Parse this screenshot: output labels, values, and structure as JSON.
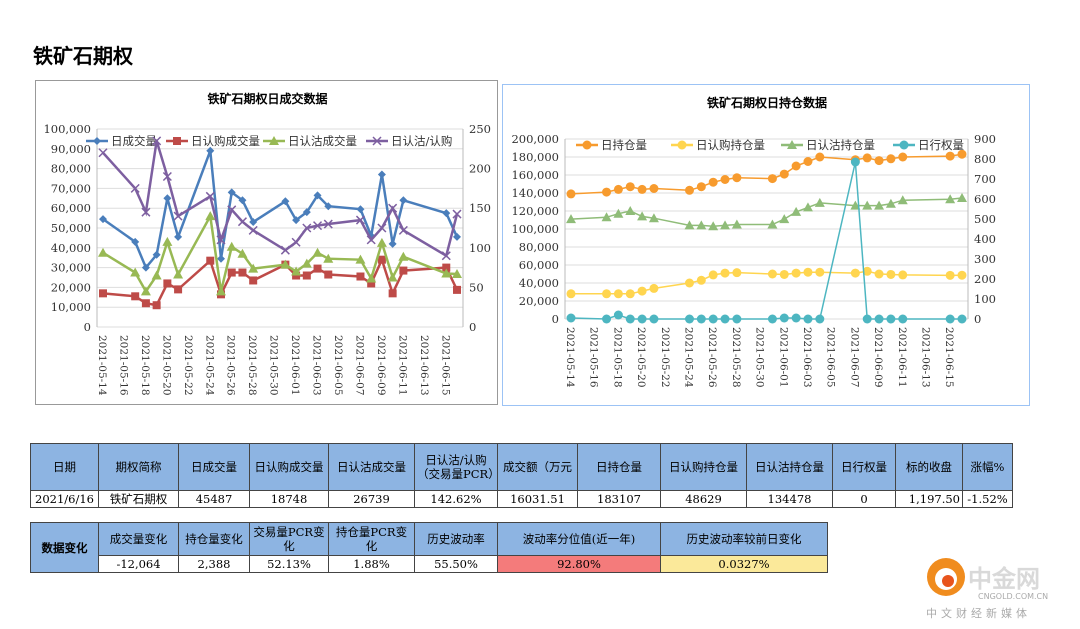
{
  "page_title": "铁矿石期权",
  "chart_data": [
    {
      "type": "line",
      "title": "铁矿石期权日成交数据",
      "x": [
        "2021-05-14",
        "2021-05-17",
        "2021-05-18",
        "2021-05-19",
        "2021-05-20",
        "2021-05-21",
        "2021-05-24",
        "2021-05-25",
        "2021-05-26",
        "2021-05-27",
        "2021-05-28",
        "2021-05-31",
        "2021-06-01",
        "2021-06-02",
        "2021-06-03",
        "2021-06-04",
        "2021-06-07",
        "2021-06-08",
        "2021-06-09",
        "2021-06-10",
        "2021-06-11",
        "2021-06-15",
        "2021-06-16"
      ],
      "x_tick_labels": [
        "2021-05-14",
        "2021-05-16",
        "2021-05-18",
        "2021-05-20",
        "2021-05-22",
        "2021-05-24",
        "2021-05-26",
        "2021-05-28",
        "2021-05-30",
        "2021-06-01",
        "2021-06-03",
        "2021-06-05",
        "2021-06-07",
        "2021-06-09",
        "2021-06-11",
        "2021-06-13",
        "2021-06-15"
      ],
      "y_ticks": [
        "0",
        "10,000",
        "20,000",
        "30,000",
        "40,000",
        "50,000",
        "60,000",
        "70,000",
        "80,000",
        "90,000",
        "100,000"
      ],
      "y2_ticks": [
        "0",
        "50",
        "100",
        "150",
        "200",
        "250"
      ],
      "ylim": [
        0,
        100000
      ],
      "y2lim": [
        0,
        250
      ],
      "grid": true,
      "legend": "top",
      "series": [
        {
          "name": "日成交量",
          "color": "#4a7ebb",
          "marker": "diamond",
          "axis": "left",
          "values": [
            54500,
            43000,
            30000,
            36500,
            65000,
            45500,
            89000,
            34500,
            68000,
            64000,
            53000,
            63500,
            54000,
            58000,
            66500,
            61000,
            59500,
            46000,
            77000,
            42000,
            64000,
            57500,
            45487
          ]
        },
        {
          "name": "日认购成交量",
          "color": "#be4b48",
          "marker": "square",
          "axis": "left",
          "values": [
            17000,
            15500,
            12000,
            11000,
            22000,
            19000,
            33500,
            16500,
            27500,
            27500,
            23500,
            31500,
            26000,
            26000,
            29500,
            26500,
            25500,
            22000,
            34000,
            17000,
            28500,
            30000,
            18748
          ]
        },
        {
          "name": "日认沽成交量",
          "color": "#98b954",
          "marker": "triangle",
          "axis": "left",
          "values": [
            37500,
            27500,
            18000,
            26000,
            43000,
            26500,
            56000,
            18000,
            40500,
            37000,
            29500,
            31500,
            28000,
            32000,
            37500,
            34500,
            34000,
            24500,
            42500,
            25000,
            35500,
            27000,
            26739
          ]
        },
        {
          "name": "日认沽/认购",
          "color": "#7d5fa0",
          "marker": "x",
          "axis": "right",
          "values": [
            220,
            175,
            145,
            235,
            190,
            140,
            165,
            110,
            148,
            133,
            122,
            97,
            107,
            125,
            128,
            130,
            135,
            110,
            125,
            150,
            122,
            90,
            142.62
          ]
        }
      ]
    },
    {
      "type": "line",
      "title": "铁矿石期权日持仓数据",
      "x": [
        "2021-05-14",
        "2021-05-17",
        "2021-05-18",
        "2021-05-19",
        "2021-05-20",
        "2021-05-21",
        "2021-05-24",
        "2021-05-25",
        "2021-05-26",
        "2021-05-27",
        "2021-05-28",
        "2021-05-31",
        "2021-06-01",
        "2021-06-02",
        "2021-06-03",
        "2021-06-04",
        "2021-06-07",
        "2021-06-08",
        "2021-06-09",
        "2021-06-10",
        "2021-06-11",
        "2021-06-15",
        "2021-06-16"
      ],
      "x_tick_labels": [
        "2021-05-14",
        "2021-05-16",
        "2021-05-18",
        "2021-05-20",
        "2021-05-22",
        "2021-05-24",
        "2021-05-26",
        "2021-05-28",
        "2021-05-30",
        "2021-06-01",
        "2021-06-03",
        "2021-06-05",
        "2021-06-07",
        "2021-06-09",
        "2021-06-11",
        "2021-06-13",
        "2021-06-15"
      ],
      "y_ticks": [
        "0",
        "20,000",
        "40,000",
        "60,000",
        "80,000",
        "100,000",
        "120,000",
        "140,000",
        "160,000",
        "180,000",
        "200,000"
      ],
      "y2_ticks": [
        "0",
        "100",
        "200",
        "300",
        "400",
        "500",
        "600",
        "700",
        "800",
        "900"
      ],
      "ylim": [
        0,
        200000
      ],
      "y2lim": [
        0,
        900
      ],
      "grid": true,
      "legend": "top",
      "series": [
        {
          "name": "日持仓量",
          "color": "#f79b2e",
          "marker": "circle",
          "axis": "left",
          "values": [
            139000,
            141000,
            144000,
            147000,
            144000,
            145000,
            143000,
            147000,
            152000,
            155000,
            157000,
            156000,
            161000,
            170000,
            175000,
            180000,
            177000,
            179000,
            176000,
            178000,
            180000,
            181000,
            183107
          ]
        },
        {
          "name": "日认购持仓量",
          "color": "#ffd54f",
          "marker": "circle",
          "axis": "left",
          "values": [
            28000,
            28000,
            28000,
            28000,
            31000,
            34000,
            40000,
            43000,
            49000,
            51000,
            51500,
            50000,
            49500,
            51000,
            52000,
            52000,
            51000,
            53000,
            50000,
            49500,
            49000,
            48500,
            48629
          ]
        },
        {
          "name": "日认沽持仓量",
          "color": "#8fbc78",
          "marker": "triangle",
          "axis": "left",
          "values": [
            111000,
            113000,
            117000,
            120000,
            114000,
            112000,
            104000,
            104000,
            103000,
            104000,
            105000,
            105000,
            111000,
            119000,
            124000,
            129000,
            126000,
            126000,
            126000,
            128000,
            132000,
            133000,
            134478
          ]
        },
        {
          "name": "日行权量",
          "color": "#4db6c1",
          "marker": "circle",
          "axis": "right",
          "values": [
            5,
            0,
            20,
            0,
            0,
            0,
            0,
            0,
            0,
            0,
            0,
            0,
            5,
            5,
            0,
            0,
            785,
            0,
            0,
            0,
            0,
            0,
            0
          ]
        }
      ]
    }
  ],
  "table1": {
    "headers": [
      "日期",
      "期权简称",
      "日成交量",
      "日认购成交量",
      "日认沽成交量",
      "日认沽/认购（交易量PCR）",
      "成交额（万元",
      "日持仓量",
      "日认购持仓量",
      "日认沽持仓量",
      "日行权量",
      "标的收盘",
      "涨幅%"
    ],
    "row": [
      "2021/6/16",
      "铁矿石期权",
      "45487",
      "18748",
      "26739",
      "142.62%",
      "16031.51",
      "183107",
      "48629",
      "134478",
      "0",
      "1,197.50",
      "-1.52%"
    ]
  },
  "table2": {
    "lead": "数据变化",
    "headers": [
      "成交量变化",
      "持仓量变化",
      "交易量PCR变化",
      "持仓量PCR变化",
      "历史波动率",
      "波动率分位值(近一年)",
      "历史波动率较前日变化"
    ],
    "row": [
      "-12,064",
      "2,388",
      "52.13%",
      "1.88%",
      "55.50%",
      "92.80%",
      "0.0327%"
    ],
    "highlight_colors": {
      "percentile": "#f47b7b",
      "change": "#fbe99a"
    }
  },
  "logo": {
    "name": "中金网",
    "domain": "CNGOLD.COM.CN",
    "slogan": "中文财经新媒体"
  }
}
